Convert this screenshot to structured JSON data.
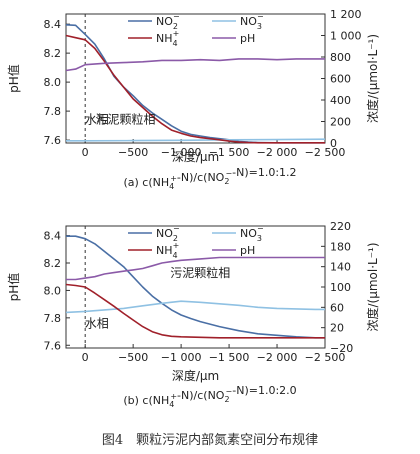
{
  "figure_caption": "图4　颗粒污泥内部氮素空间分布规律",
  "colors": {
    "no2": "#4a6fa5",
    "no3": "#8fc1e3",
    "nh4": "#a0202a",
    "ph": "#8b5aa8"
  },
  "chart_data": [
    {
      "type": "line",
      "panel": "a",
      "caption": "(a) c(NH4+-N)/c(NO2−-N)=1.0:1.2",
      "xlabel": "深度/μm",
      "ylabel_left": "pH值",
      "ylabel_right": "浓度/(μmol·L⁻¹)",
      "xlim": [
        200,
        -2500
      ],
      "ylim_left": [
        7.58,
        8.47
      ],
      "ylim_right": [
        0,
        1200
      ],
      "x_ticks": [
        0,
        -500,
        -1000,
        -1500,
        -2000,
        -2500
      ],
      "x_tick_labels": [
        "0",
        "−500",
        "−1 000",
        "−1 500",
        "−2 000",
        "−2 500"
      ],
      "y_left_ticks": [
        7.6,
        7.8,
        8.0,
        8.2,
        8.4
      ],
      "y_left_tick_labels": [
        "7.6",
        "7.8",
        "8.0",
        "8.2",
        "8.4"
      ],
      "y_right_ticks": [
        0,
        200,
        400,
        600,
        800,
        1000,
        1200
      ],
      "y_right_tick_labels": [
        "0",
        "200",
        "400",
        "600",
        "800",
        "1 000",
        "1 200"
      ],
      "interface_x": 0,
      "annotations": [
        {
          "text": "水相",
          "x": -120,
          "y_right": 180
        },
        {
          "text": "污泥颗粒相",
          "x": -420,
          "y_right": 180
        }
      ],
      "legend": [
        "NO2−",
        "NO3−",
        "NH4+",
        "pH"
      ],
      "series": [
        {
          "name": "NO2−",
          "key": "no2",
          "axis": "right",
          "x": [
            200,
            100,
            0,
            -100,
            -200,
            -300,
            -400,
            -500,
            -600,
            -700,
            -800,
            -900,
            -1000,
            -1100,
            -1200,
            -1300,
            -1400,
            -1500,
            -1600,
            -1700,
            -1800,
            -1900,
            -2000,
            -2100,
            -2200,
            -2300,
            -2400,
            -2500
          ],
          "y": [
            1100,
            1095,
            1010,
            920,
            780,
            620,
            520,
            440,
            350,
            280,
            220,
            160,
            110,
            80,
            65,
            50,
            40,
            30,
            15,
            8,
            5,
            3,
            2,
            2,
            2,
            2,
            2,
            2
          ]
        },
        {
          "name": "NO3−",
          "key": "no3",
          "axis": "right",
          "x": [
            200,
            0,
            -500,
            -1000,
            -1500,
            -2000,
            -2500
          ],
          "y": [
            20,
            20,
            22,
            25,
            30,
            32,
            35
          ]
        },
        {
          "name": "NH4+",
          "key": "nh4",
          "axis": "right",
          "x": [
            200,
            100,
            0,
            -100,
            -200,
            -300,
            -400,
            -500,
            -600,
            -700,
            -800,
            -900,
            -1000,
            -1100,
            -1200,
            -1300,
            -1400,
            -1500,
            -1600,
            -1700,
            -1800,
            -1900,
            -2000,
            -2100,
            -2200,
            -2300,
            -2400,
            -2500
          ],
          "y": [
            1000,
            980,
            960,
            880,
            760,
            630,
            520,
            410,
            330,
            250,
            180,
            120,
            90,
            65,
            50,
            40,
            30,
            18,
            8,
            4,
            2,
            2,
            2,
            2,
            2,
            2,
            2,
            2
          ]
        },
        {
          "name": "pH",
          "key": "ph",
          "axis": "left",
          "x": [
            200,
            100,
            0,
            -200,
            -400,
            -600,
            -800,
            -1000,
            -1200,
            -1400,
            -1600,
            -1800,
            -2000,
            -2200,
            -2400,
            -2500
          ],
          "y": [
            8.08,
            8.09,
            8.12,
            8.13,
            8.135,
            8.14,
            8.15,
            8.15,
            8.155,
            8.15,
            8.16,
            8.16,
            8.155,
            8.16,
            8.16,
            8.16
          ]
        }
      ]
    },
    {
      "type": "line",
      "panel": "b",
      "caption": "(b) c(NH4+-N)/c(NO2−-N)=1.0:2.0",
      "xlabel": "深度/μm",
      "ylabel_left": "pH值",
      "ylabel_right": "浓度/(μmol·L⁻¹)",
      "xlim": [
        200,
        -2500
      ],
      "ylim_left": [
        7.58,
        8.47
      ],
      "ylim_right": [
        -20,
        220
      ],
      "x_ticks": [
        0,
        -500,
        -1000,
        -1500,
        -2000,
        -2500
      ],
      "x_tick_labels": [
        "0",
        "−500",
        "−1 000",
        "−1 500",
        "−2 000",
        "−2 500"
      ],
      "y_left_ticks": [
        7.6,
        7.8,
        8.0,
        8.2,
        8.4
      ],
      "y_left_tick_labels": [
        "7.6",
        "7.8",
        "8.0",
        "8.2",
        "8.4"
      ],
      "y_right_ticks": [
        -20,
        20,
        60,
        100,
        140,
        180,
        220
      ],
      "y_right_tick_labels": [
        "−20",
        "20",
        "60",
        "100",
        "140",
        "180",
        "220"
      ],
      "interface_x": 0,
      "annotations": [
        {
          "text": "水相",
          "x": -120,
          "y_right": 20
        },
        {
          "text": "污泥颗粒相",
          "x": -1200,
          "y_right": 120
        }
      ],
      "legend": [
        "NO2−",
        "NO3−",
        "NH4+",
        "pH"
      ],
      "series": [
        {
          "name": "NO2−",
          "key": "no2",
          "axis": "right",
          "x": [
            200,
            100,
            0,
            -100,
            -200,
            -300,
            -400,
            -500,
            -600,
            -700,
            -800,
            -900,
            -1000,
            -1100,
            -1200,
            -1400,
            -1600,
            -1800,
            -2000,
            -2200,
            -2400,
            -2500
          ],
          "y": [
            200,
            200,
            195,
            185,
            170,
            155,
            140,
            120,
            100,
            82,
            68,
            55,
            45,
            38,
            32,
            22,
            14,
            8,
            5,
            2,
            0,
            0
          ]
        },
        {
          "name": "NO3−",
          "key": "no3",
          "axis": "right",
          "x": [
            200,
            0,
            -200,
            -400,
            -600,
            -800,
            -1000,
            -1200,
            -1400,
            -1600,
            -1800,
            -2000,
            -2200,
            -2400,
            -2500
          ],
          "y": [
            50,
            52,
            55,
            58,
            63,
            68,
            72,
            70,
            67,
            64,
            60,
            58,
            57,
            56,
            56
          ]
        },
        {
          "name": "NH4+",
          "key": "nh4",
          "axis": "right",
          "x": [
            200,
            100,
            0,
            -100,
            -200,
            -300,
            -400,
            -500,
            -600,
            -700,
            -800,
            -900,
            -1000,
            -1200,
            -1400,
            -1600,
            -1800,
            -2000,
            -2200,
            -2400,
            -2500
          ],
          "y": [
            105,
            103,
            100,
            88,
            75,
            62,
            48,
            35,
            22,
            12,
            6,
            3,
            2,
            1,
            0,
            0,
            0,
            0,
            0,
            0,
            0
          ]
        },
        {
          "name": "pH",
          "key": "ph",
          "axis": "left",
          "x": [
            200,
            100,
            0,
            -100,
            -200,
            -300,
            -400,
            -500,
            -600,
            -700,
            -800,
            -900,
            -1000,
            -1200,
            -1400,
            -1600,
            -1800,
            -2000,
            -2200,
            -2400,
            -2500
          ],
          "y": [
            8.08,
            8.08,
            8.09,
            8.1,
            8.12,
            8.13,
            8.14,
            8.15,
            8.16,
            8.18,
            8.2,
            8.21,
            8.22,
            8.23,
            8.24,
            8.24,
            8.24,
            8.24,
            8.24,
            8.24,
            8.24
          ]
        }
      ]
    }
  ]
}
